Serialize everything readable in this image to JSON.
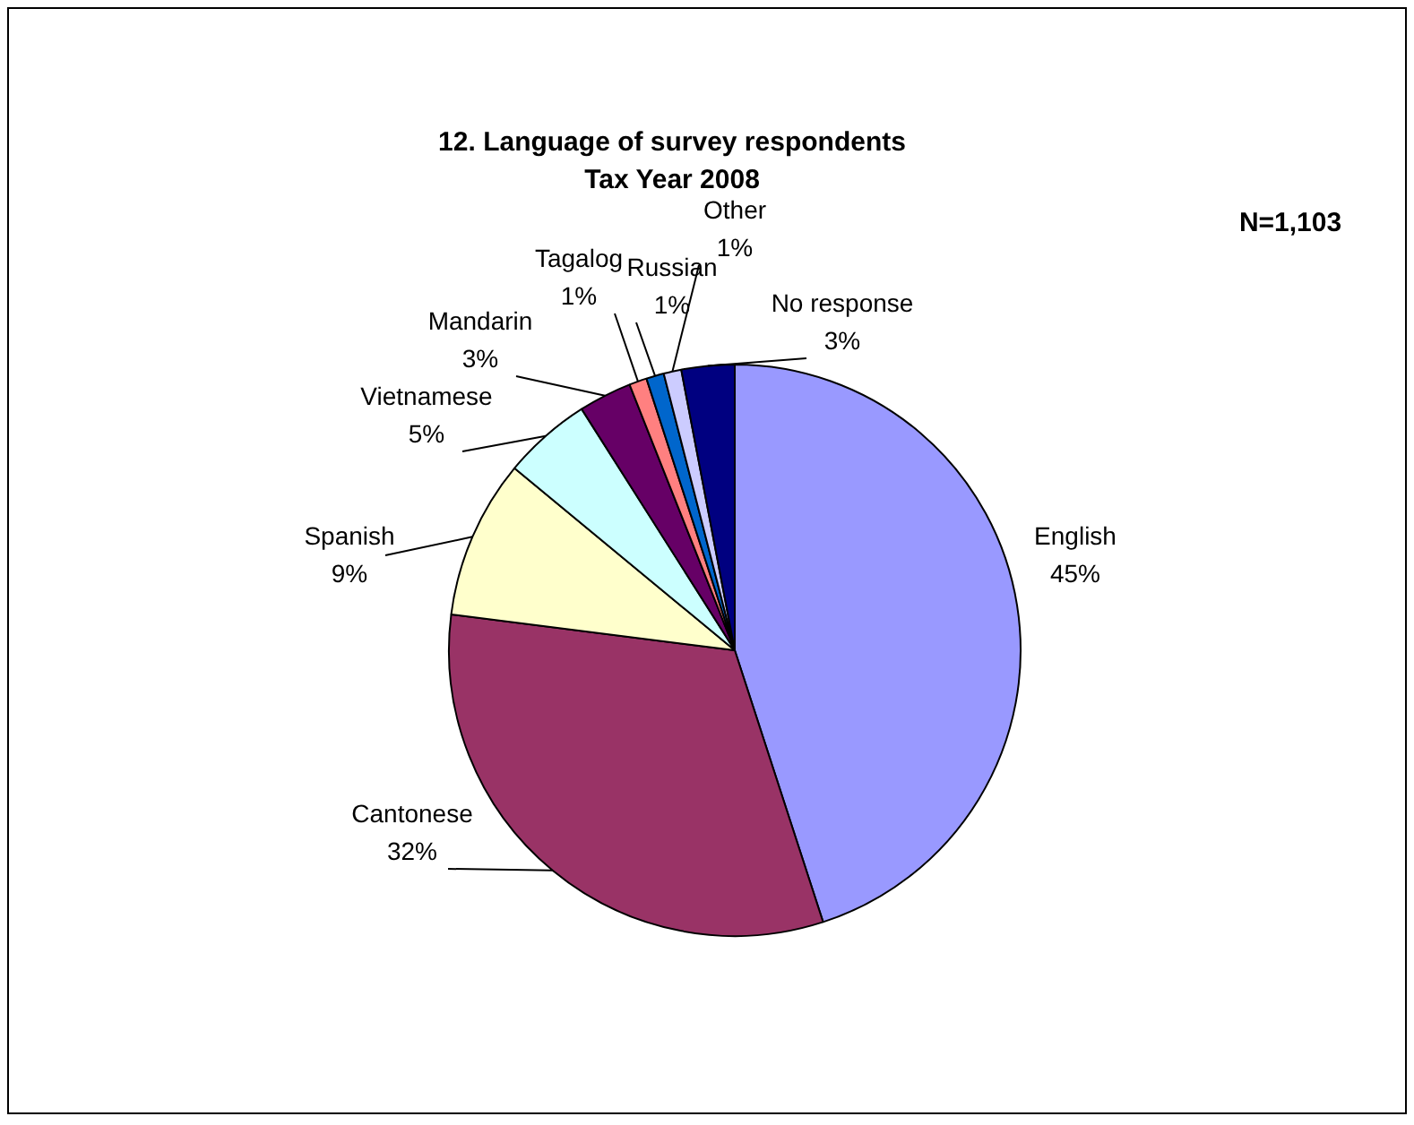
{
  "chart_data": {
    "type": "pie",
    "title": "12. Language of survey respondents",
    "subtitle": "Tax Year 2008",
    "annotations": [
      "N=1,103"
    ],
    "categories": [
      "English",
      "Cantonese",
      "Spanish",
      "Vietnamese",
      "Mandarin",
      "Tagalog",
      "Russian",
      "Other",
      "No response"
    ],
    "values": [
      45,
      32,
      9,
      5,
      3,
      1,
      1,
      1,
      3
    ],
    "colors": [
      "#9999ff",
      "#993366",
      "#ffffcc",
      "#ccffff",
      "#660066",
      "#ff8080",
      "#0066cc",
      "#ccccff",
      "#000080"
    ],
    "value_labels": [
      "45%",
      "32%",
      "9%",
      "5%",
      "3%",
      "1%",
      "1%",
      "1%",
      "3%"
    ],
    "legend": false
  }
}
